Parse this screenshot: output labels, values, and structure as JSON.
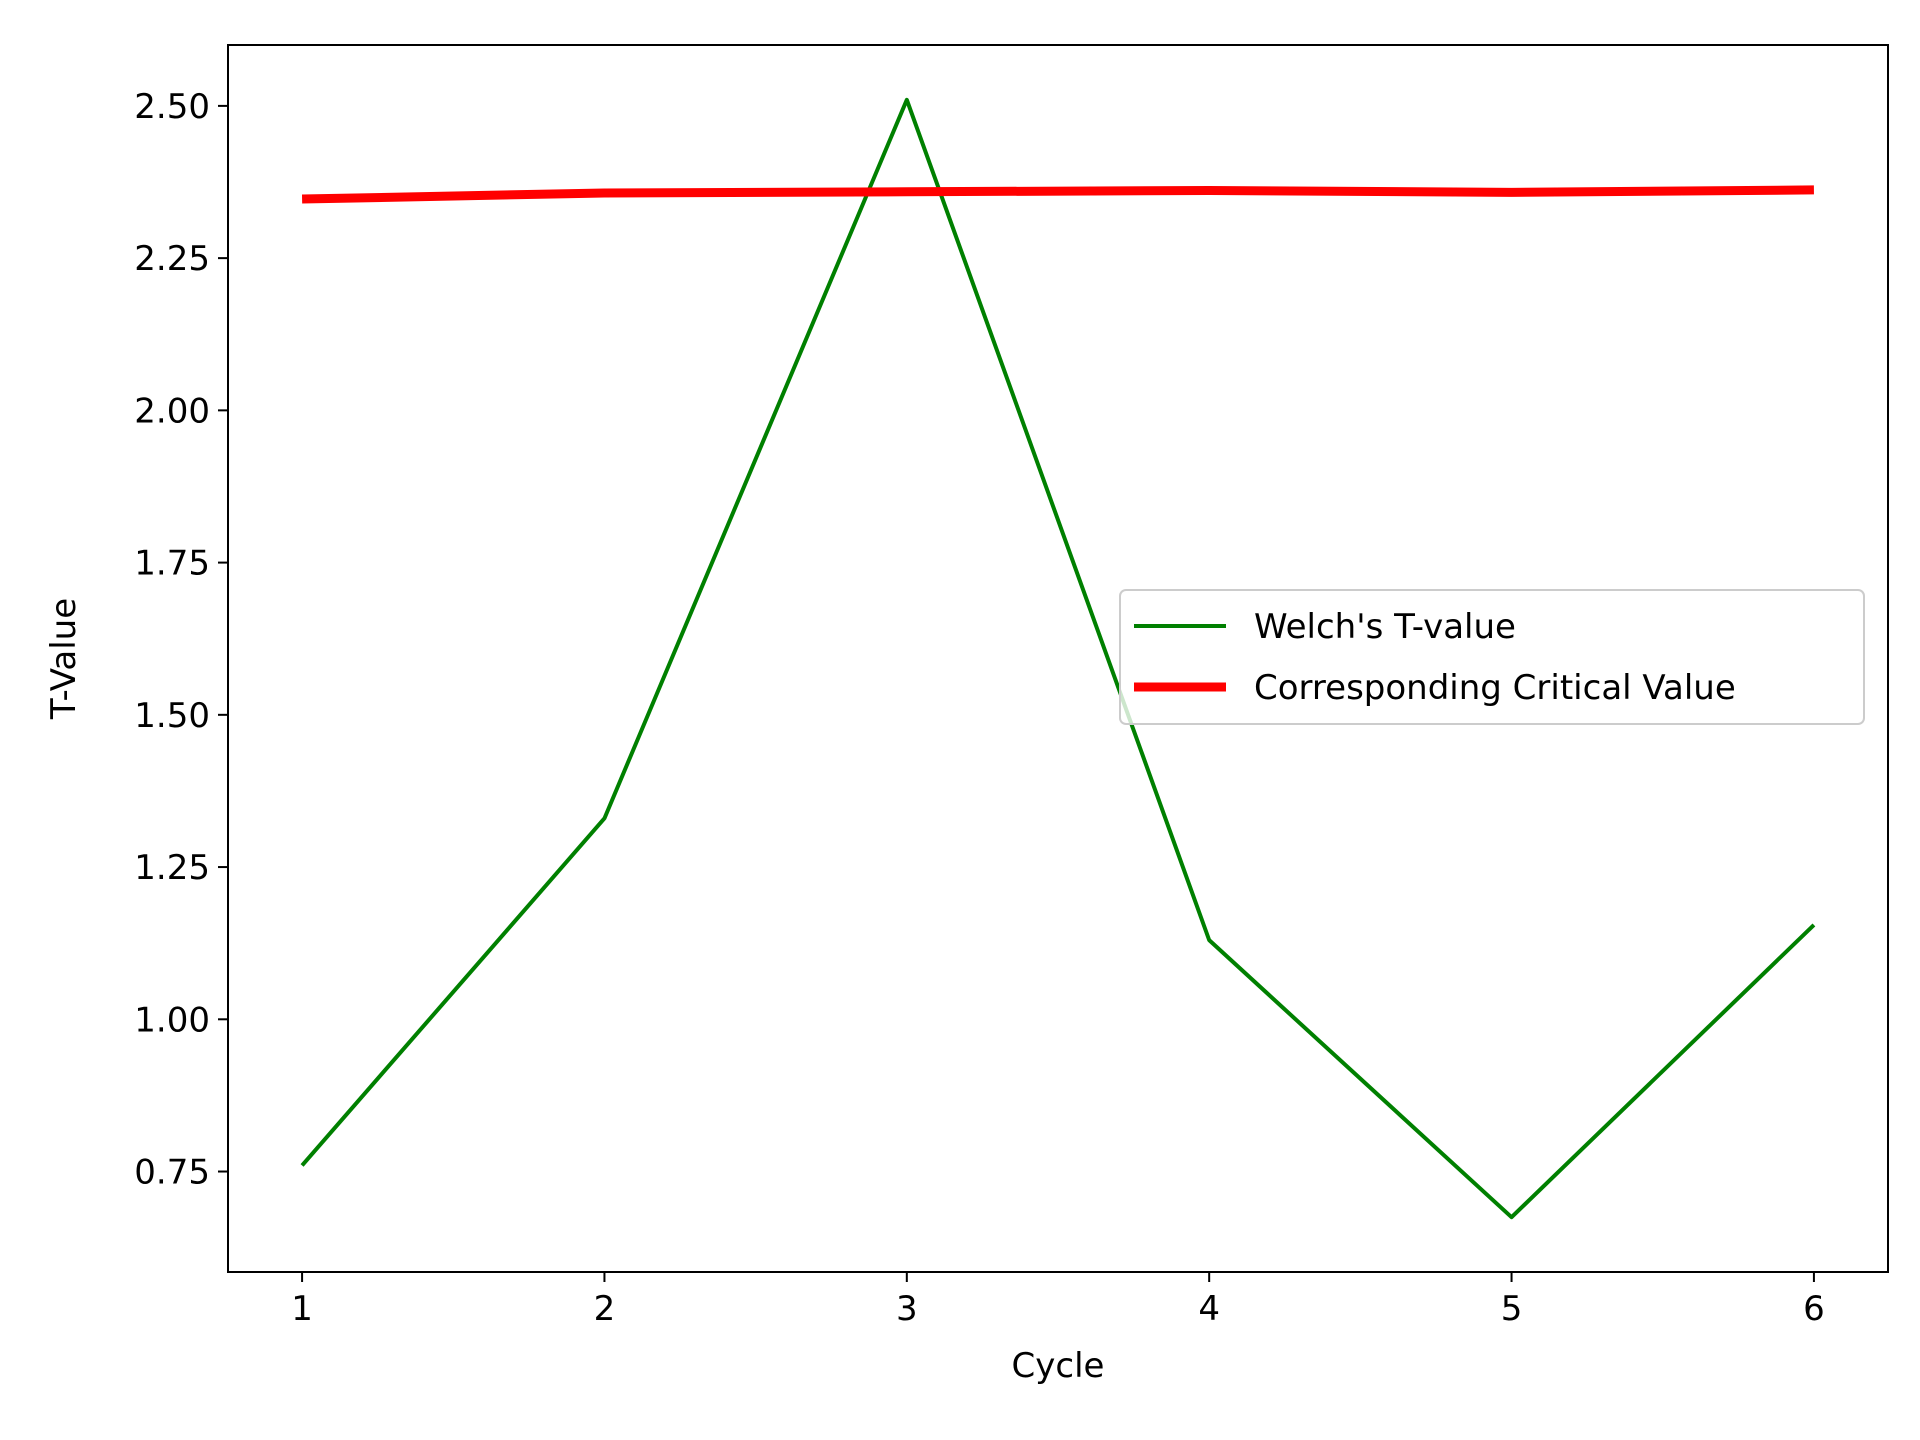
{
  "chart_data": {
    "type": "line",
    "title": "",
    "xlabel": "Cycle",
    "ylabel": "T-Value",
    "x": [
      1,
      2,
      3,
      4,
      5,
      6
    ],
    "xticks": [
      "1",
      "2",
      "3",
      "4",
      "5",
      "6"
    ],
    "yticks": [
      "0.75",
      "1.00",
      "1.25",
      "1.50",
      "1.75",
      "2.00",
      "2.25",
      "2.50"
    ],
    "ytick_values": [
      0.75,
      1.0,
      1.25,
      1.5,
      1.75,
      2.0,
      2.25,
      2.5
    ],
    "xlim": [
      0.755,
      6.245
    ],
    "ylim": [
      0.585,
      2.6
    ],
    "grid": false,
    "legend_position": "center-right",
    "series": [
      {
        "name": "Welch's T-value",
        "color": "#008000",
        "values": [
          0.76,
          1.33,
          2.51,
          1.13,
          0.675,
          1.155
        ]
      },
      {
        "name": "Corresponding Critical Value",
        "color": "#ff0000",
        "values": [
          2.347,
          2.357,
          2.359,
          2.361,
          2.358,
          2.362
        ]
      }
    ]
  }
}
